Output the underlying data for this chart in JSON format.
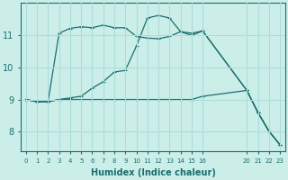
{
  "bg_color": "#cceee8",
  "grid_color": "#aadddd",
  "line_color": "#1a6e6e",
  "xlabel": "Humidex (Indice chaleur)",
  "xtick_labels": [
    "0",
    "1",
    "2",
    "3",
    "4",
    "5",
    "6",
    "7",
    "8",
    "9",
    "10",
    "11",
    "12",
    "13",
    "14",
    "15",
    "16",
    "20",
    "21",
    "22",
    "23"
  ],
  "xtick_positions": [
    0,
    1,
    2,
    3,
    4,
    5,
    6,
    7,
    8,
    9,
    10,
    11,
    12,
    13,
    14,
    15,
    16,
    20,
    21,
    22,
    23
  ],
  "yticks": [
    8,
    9,
    10,
    11
  ],
  "ylim": [
    7.4,
    12.0
  ],
  "line1_x": [
    0,
    1,
    2,
    3,
    4,
    5,
    6,
    7,
    8,
    9,
    10,
    11,
    12,
    13,
    14,
    15,
    16,
    20,
    21,
    22,
    23
  ],
  "line1_y": [
    9.0,
    8.93,
    8.93,
    11.05,
    11.2,
    11.25,
    11.22,
    11.3,
    11.22,
    11.22,
    10.95,
    10.9,
    10.88,
    10.95,
    11.1,
    10.98,
    11.12,
    9.28,
    8.6,
    8.02,
    7.6
  ],
  "line2_x": [
    0,
    1,
    2,
    3,
    4,
    5,
    6,
    7,
    8,
    9,
    10,
    11,
    12,
    13,
    14,
    15,
    16,
    20,
    21,
    22,
    23
  ],
  "line2_y": [
    9.0,
    8.93,
    8.93,
    9.0,
    9.05,
    9.1,
    9.35,
    9.55,
    9.85,
    9.9,
    10.65,
    11.52,
    11.6,
    11.52,
    11.1,
    11.05,
    11.12,
    9.28,
    8.6,
    8.02,
    7.6
  ],
  "line3_x": [
    0,
    1,
    2,
    3,
    4,
    5,
    6,
    7,
    8,
    9,
    10,
    11,
    12,
    13,
    14,
    15,
    16,
    20,
    21,
    22,
    23
  ],
  "line3_y": [
    9.0,
    8.93,
    8.93,
    9.0,
    9.0,
    9.0,
    9.0,
    9.0,
    9.0,
    9.0,
    9.0,
    9.0,
    9.0,
    9.0,
    9.0,
    9.0,
    9.1,
    9.28,
    8.6,
    8.02,
    7.6
  ],
  "figsize": [
    3.2,
    2.0
  ],
  "dpi": 100
}
